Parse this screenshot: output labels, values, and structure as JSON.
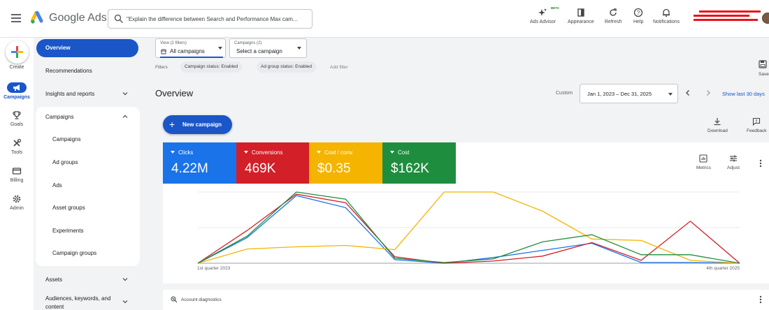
{
  "topbar": {
    "brand": "Google Ads",
    "search_placeholder": "\"Explain the difference between Search and Performance Max cam...",
    "tools": {
      "ads_advisor": "Ads Advisor",
      "ads_advisor_badge": "BETA",
      "appearance": "Appearance",
      "refresh": "Refresh",
      "help": "Help",
      "notifications": "Notifications"
    }
  },
  "rail": {
    "create": "Create",
    "campaigns": "Campaigns",
    "goals": "Goals",
    "tools": "Tools",
    "billing": "Billing",
    "admin": "Admin"
  },
  "nav": {
    "overview": "Overview",
    "recommendations": "Recommendations",
    "insights": "Insights and reports",
    "campaigns": "Campaigns",
    "sub": [
      "Campaigns",
      "Ad groups",
      "Ads",
      "Asset groups",
      "Experiments",
      "Campaign groups"
    ],
    "assets": "Assets",
    "audiences": "Audiences, keywords, and",
    "audiences_2": "content"
  },
  "main": {
    "view_caption": "View (2 filters)",
    "view_value": "All campaigns",
    "campaigns_caption": "Campaigns (2)",
    "campaigns_value": "Select a campaign",
    "filters_label": "Filters",
    "chips": [
      "Campaign status: Enabled",
      "Ad group status: Enabled"
    ],
    "add_filter": "Add filter",
    "save_label": "Save",
    "title": "Overview",
    "custom_label": "Custom",
    "date_range": "Jan 1, 2023 – Dec 31, 2025",
    "show_last": "Show last 30 days",
    "new_campaign": "New campaign",
    "download": "Download",
    "feedback": "Feedback",
    "metrics_btn": "Metrics",
    "adjust_btn": "Adjust",
    "diagnostics": "Account diagnostics"
  },
  "metrics": [
    {
      "name": "Clicks",
      "value": "4.22M",
      "color": "#1a73e8"
    },
    {
      "name": "Conversions",
      "value": "469K",
      "color": "#d21f28"
    },
    {
      "name": "Cost / conv.",
      "value": "$0.35",
      "color": "#f4b400"
    },
    {
      "name": "Cost",
      "value": "$162K",
      "color": "#1e8e3e"
    }
  ],
  "chart_data": {
    "type": "line",
    "x_first_label": "1st quarter 2023",
    "x_last_label": "4th quarter 2025",
    "points_count": 12,
    "grid": true,
    "series": [
      {
        "name": "Clicks",
        "color": "#1a73e8",
        "values": [
          0,
          0.36,
          0.95,
          0.78,
          0.05,
          0,
          0.08,
          0.18,
          0.28,
          0.01,
          0.01,
          0
        ]
      },
      {
        "name": "Conversions",
        "color": "#d21f28",
        "values": [
          0,
          0.46,
          0.97,
          0.85,
          0.09,
          0,
          0.03,
          0.1,
          0.29,
          0.04,
          0.59,
          0
        ]
      },
      {
        "name": "Cost / conv.",
        "color": "#f4b400",
        "values": [
          0,
          0.2,
          0.23,
          0.25,
          0.19,
          1.0,
          1.0,
          0.73,
          0.34,
          0.32,
          0.04,
          0
        ]
      },
      {
        "name": "Cost",
        "color": "#1e8e3e",
        "values": [
          0,
          0.38,
          1.0,
          0.9,
          0.07,
          0.01,
          0.06,
          0.3,
          0.4,
          0.12,
          0.12,
          0
        ]
      }
    ]
  }
}
